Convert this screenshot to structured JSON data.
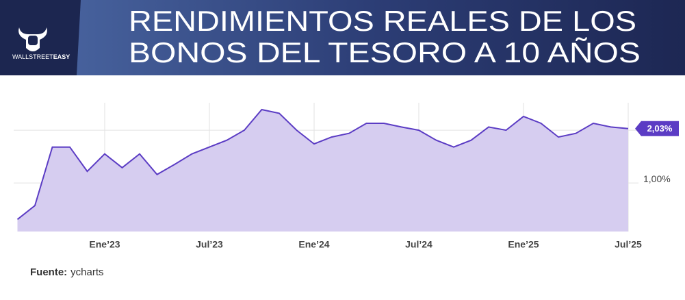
{
  "header": {
    "title_lines": [
      "RENDIMIENTOS REALES DE LOS",
      "BONOS DEL TESORO A 10 AÑOS"
    ],
    "logo": {
      "light": "WALLSTREET",
      "bold": "EASY"
    }
  },
  "chart_data": {
    "type": "area",
    "x": [
      "2022-08",
      "2022-09",
      "2022-10",
      "2022-11",
      "2022-12",
      "2023-01",
      "2023-02",
      "2023-03",
      "2023-04",
      "2023-05",
      "2023-06",
      "2023-07",
      "2023-08",
      "2023-09",
      "2023-10",
      "2023-11",
      "2023-12",
      "2024-01",
      "2024-02",
      "2024-03",
      "2024-04",
      "2024-05",
      "2024-06",
      "2024-07",
      "2024-08",
      "2024-09",
      "2024-10",
      "2024-11",
      "2024-12",
      "2025-01",
      "2025-02",
      "2025-03",
      "2025-04",
      "2025-05",
      "2025-06",
      "2025-07"
    ],
    "series": [
      {
        "color": "#5b3cc4",
        "fill": "#d6cdf0",
        "values": [
          0.31,
          0.57,
          1.68,
          1.68,
          1.22,
          1.55,
          1.29,
          1.55,
          1.16,
          1.35,
          1.55,
          1.68,
          1.81,
          2.0,
          2.39,
          2.32,
          2.0,
          1.74,
          1.87,
          1.94,
          2.13,
          2.13,
          2.06,
          2.0,
          1.81,
          1.68,
          1.81,
          2.06,
          2.0,
          2.26,
          2.13,
          1.87,
          1.94,
          2.13,
          2.06,
          2.03
        ],
        "value_labels": {
          "35": "2,03%"
        }
      }
    ],
    "xlim": [
      "2022-07",
      "2025-08"
    ],
    "xticks": [
      {
        "value": "2023-01",
        "label": "Ene’23"
      },
      {
        "value": "2023-07",
        "label": "Jul’23"
      },
      {
        "value": "2024-01",
        "label": "Ene’24"
      },
      {
        "value": "2024-07",
        "label": "Jul’24"
      },
      {
        "value": "2025-01",
        "label": "Ene’25"
      },
      {
        "value": "2025-07",
        "label": "Jul’25"
      }
    ],
    "ylim": [
      0.08,
      2.52
    ],
    "yticks": [
      {
        "value": 1,
        "label": "1,00%"
      }
    ],
    "ygrid": [
      1,
      2
    ],
    "grid": true
  },
  "footer": {
    "label": "Fuente:",
    "source": "ycharts"
  }
}
